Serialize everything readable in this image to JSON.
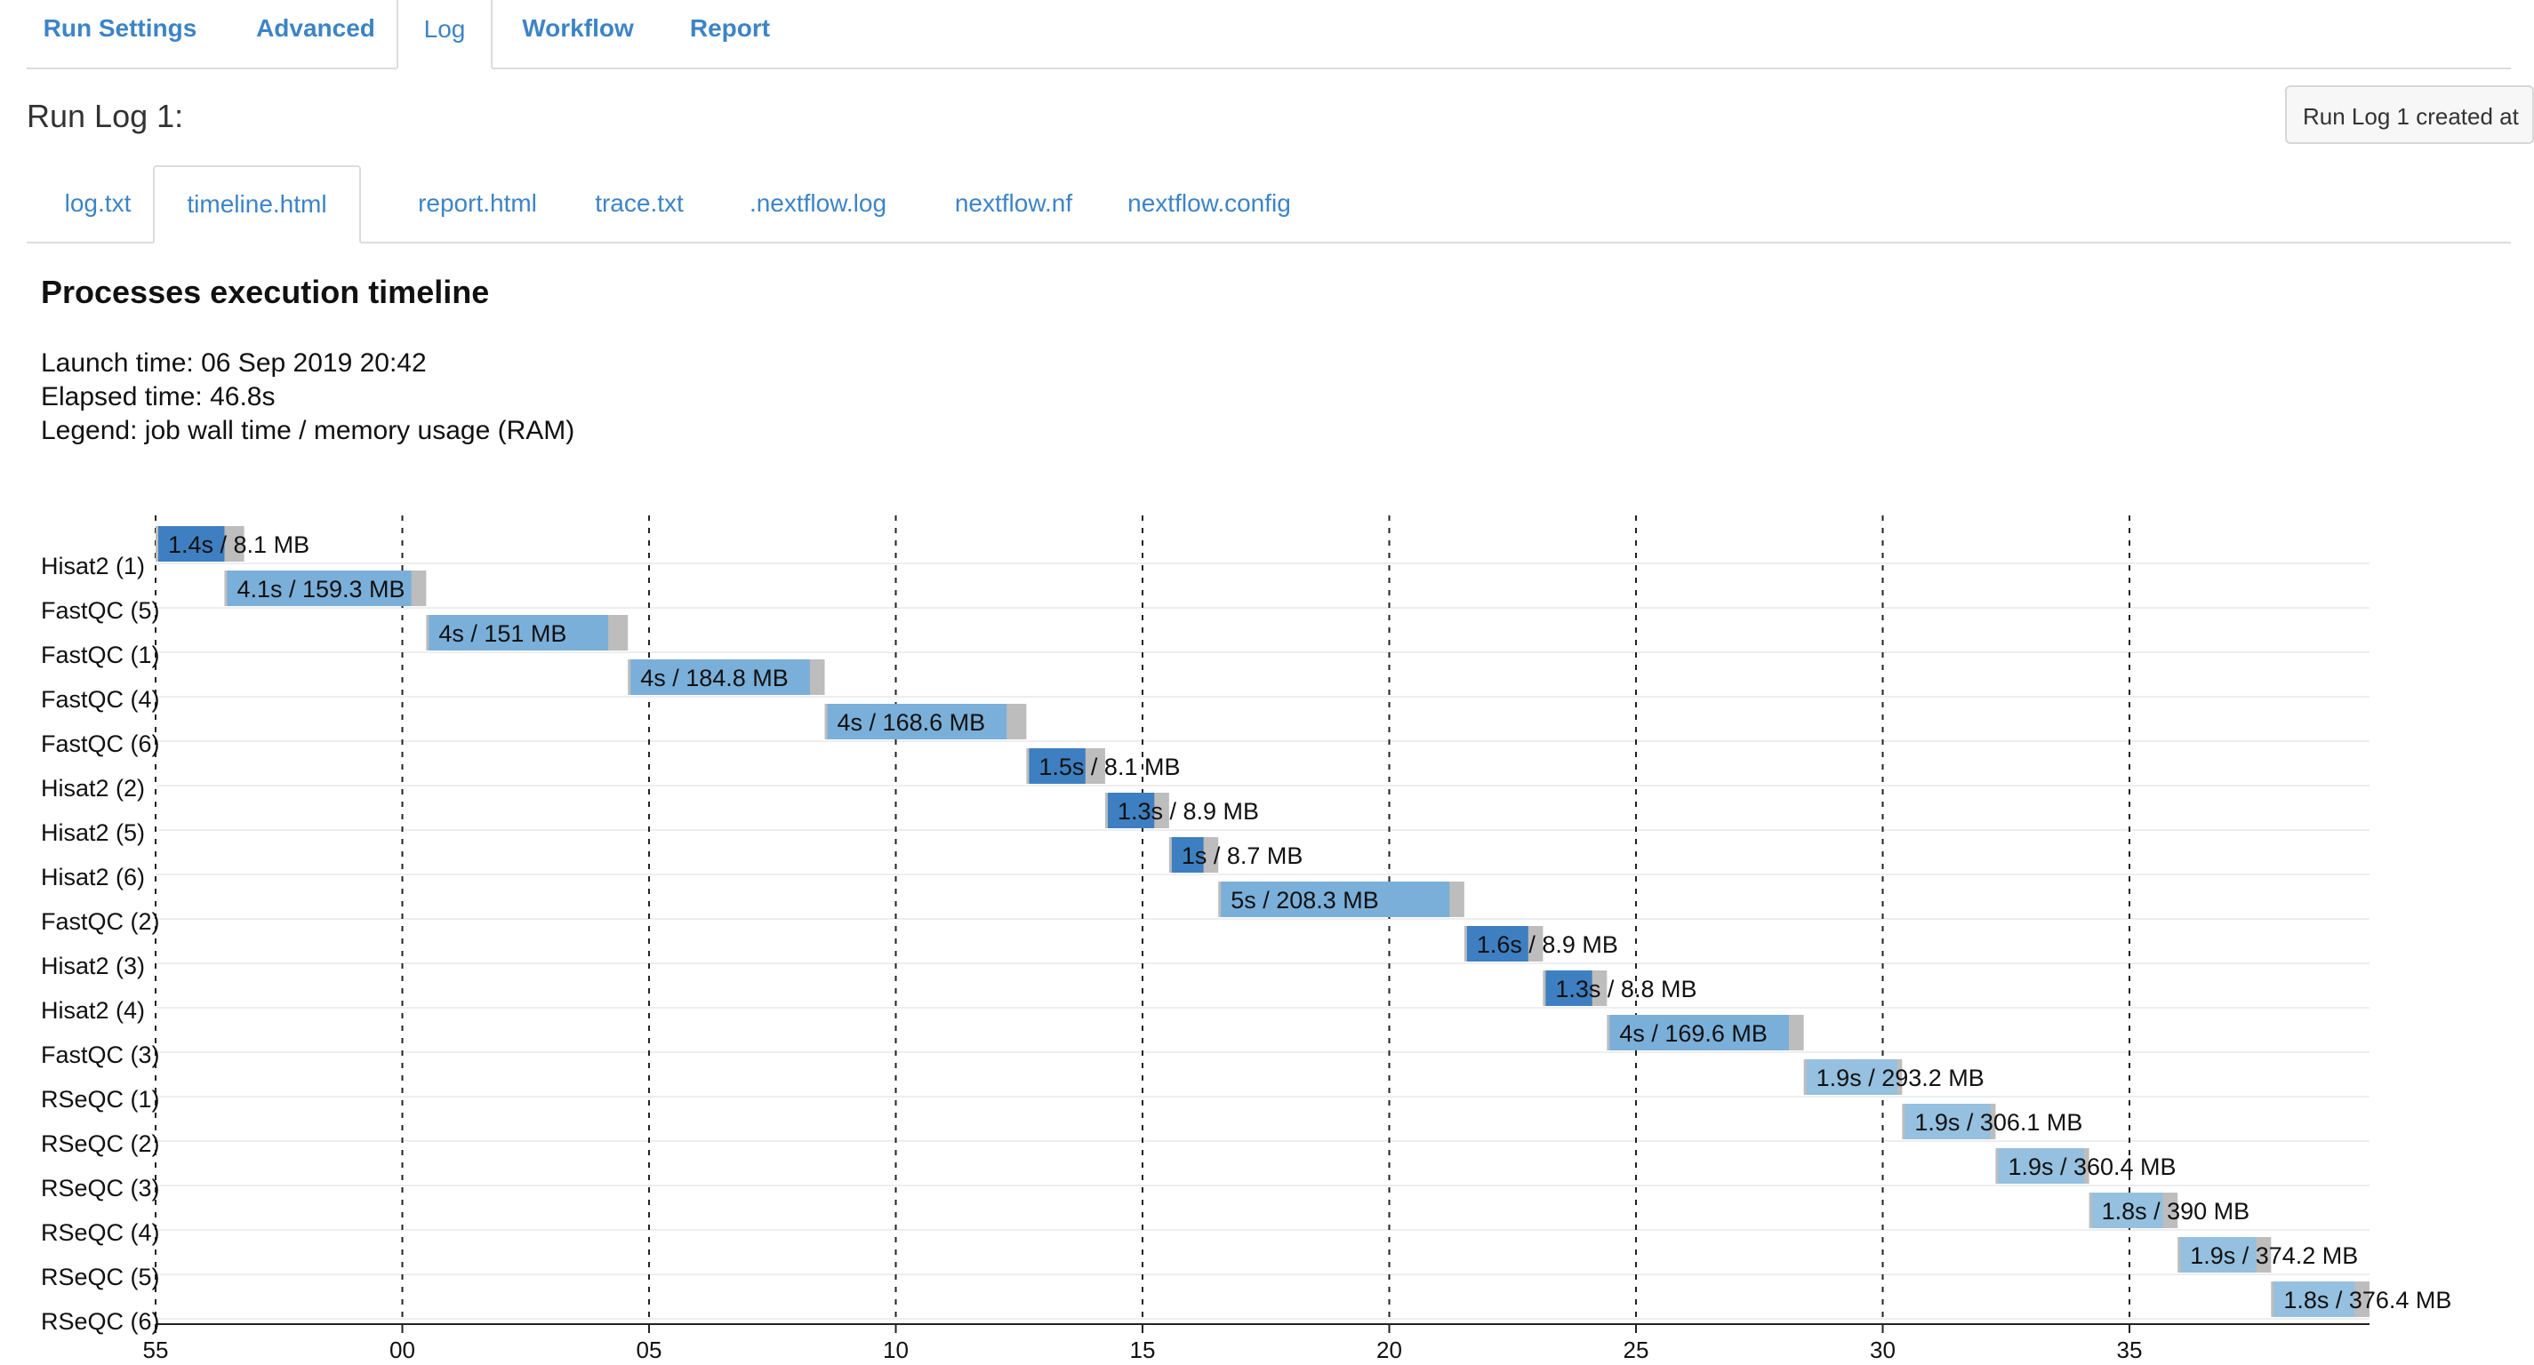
{
  "top_tabs": [
    {
      "label": "Run Settings",
      "active": false
    },
    {
      "label": "Advanced",
      "active": false
    },
    {
      "label": "Log",
      "active": true
    },
    {
      "label": "Workflow",
      "active": false
    },
    {
      "label": "Report",
      "active": false
    }
  ],
  "run_log": {
    "title": "Run Log 1:",
    "created_button": "Run Log 1 created at"
  },
  "file_tabs": [
    {
      "label": "log.txt",
      "active": false
    },
    {
      "label": "timeline.html",
      "active": true
    },
    {
      "label": "report.html",
      "active": false
    },
    {
      "label": "trace.txt",
      "active": false
    },
    {
      "label": ".nextflow.log",
      "active": false
    },
    {
      "label": "nextflow.nf",
      "active": false
    },
    {
      "label": "nextflow.config",
      "active": false
    }
  ],
  "timeline": {
    "heading": "Processes execution timeline",
    "launch_time": "Launch time: 06 Sep 2019 20:42",
    "elapsed_time": "Elapsed time: 46.8s",
    "legend": "Legend: job wall time / memory usage (RAM)"
  },
  "colors": {
    "tab_link": "#3d84c6",
    "hisat2_bar": "#3e7fc1",
    "fastqc_bar": "#7aafd9",
    "rseqc_bar": "#95c0df",
    "overhead_bar": "#bdbdbd"
  },
  "chart_data": {
    "type": "timeline",
    "x_ticks": [
      "55",
      "00",
      "05",
      "10",
      "15",
      "20",
      "25",
      "30",
      "35"
    ],
    "x_unit": "seconds (clock time, 20:42:55 onward)",
    "xlim": [
      0,
      45
    ],
    "grid": "vertical dashed at ticks",
    "tasks": [
      {
        "name": "Hisat2 (1)",
        "process": "hisat2",
        "start": 0.0,
        "submit_end": 1.4,
        "end": 1.8,
        "label": "1.4s / 8.1 MB"
      },
      {
        "name": "FastQC (5)",
        "process": "fastqc",
        "start": 1.4,
        "submit_end": 5.2,
        "end": 5.5,
        "label": "4.1s / 159.3 MB"
      },
      {
        "name": "FastQC (1)",
        "process": "fastqc",
        "start": 5.5,
        "submit_end": 9.2,
        "end": 9.6,
        "label": "4s / 151 MB"
      },
      {
        "name": "FastQC (4)",
        "process": "fastqc",
        "start": 9.6,
        "submit_end": 13.3,
        "end": 13.6,
        "label": "4s / 184.8 MB"
      },
      {
        "name": "FastQC (6)",
        "process": "fastqc",
        "start": 13.6,
        "submit_end": 17.3,
        "end": 17.7,
        "label": "4s / 168.6 MB"
      },
      {
        "name": "Hisat2 (2)",
        "process": "hisat2",
        "start": 17.7,
        "submit_end": 18.9,
        "end": 19.3,
        "label": "1.5s / 8.1 MB"
      },
      {
        "name": "Hisat2 (5)",
        "process": "hisat2",
        "start": 19.3,
        "submit_end": 20.3,
        "end": 20.6,
        "label": "1.3s / 8.9 MB"
      },
      {
        "name": "Hisat2 (6)",
        "process": "hisat2",
        "start": 20.6,
        "submit_end": 21.3,
        "end": 21.6,
        "label": "1s / 8.7 MB"
      },
      {
        "name": "FastQC (2)",
        "process": "fastqc",
        "start": 21.6,
        "submit_end": 26.3,
        "end": 26.6,
        "label": "5s / 208.3 MB"
      },
      {
        "name": "Hisat2 (3)",
        "process": "hisat2",
        "start": 26.6,
        "submit_end": 27.9,
        "end": 28.2,
        "label": "1.6s / 8.9 MB"
      },
      {
        "name": "Hisat2 (4)",
        "process": "hisat2",
        "start": 28.2,
        "submit_end": 29.2,
        "end": 29.5,
        "label": "1.3s / 8.8 MB"
      },
      {
        "name": "FastQC (3)",
        "process": "fastqc",
        "start": 29.5,
        "submit_end": 33.2,
        "end": 33.5,
        "label": "4s / 169.6 MB"
      },
      {
        "name": "RSeQC (1)",
        "process": "rseqc",
        "start": 33.5,
        "submit_end": 35.4,
        "end": 35.5,
        "label": "1.9s / 293.2 MB"
      },
      {
        "name": "RSeQC (2)",
        "process": "rseqc",
        "start": 35.5,
        "submit_end": 37.3,
        "end": 37.4,
        "label": "1.9s / 306.1 MB"
      },
      {
        "name": "RSeQC (3)",
        "process": "rseqc",
        "start": 37.4,
        "submit_end": 39.2,
        "end": 39.3,
        "label": "1.9s / 360.4 MB"
      },
      {
        "name": "RSeQC (4)",
        "process": "rseqc",
        "start": 39.3,
        "submit_end": 40.8,
        "end": 41.1,
        "label": "1.8s / 390 MB"
      },
      {
        "name": "RSeQC (5)",
        "process": "rseqc",
        "start": 41.1,
        "submit_end": 42.7,
        "end": 43.0,
        "label": "1.9s / 374.2 MB"
      },
      {
        "name": "RSeQC (6)",
        "process": "rseqc",
        "start": 43.0,
        "submit_end": 44.7,
        "end": 45.0,
        "label": "1.8s / 376.4 MB"
      }
    ]
  }
}
